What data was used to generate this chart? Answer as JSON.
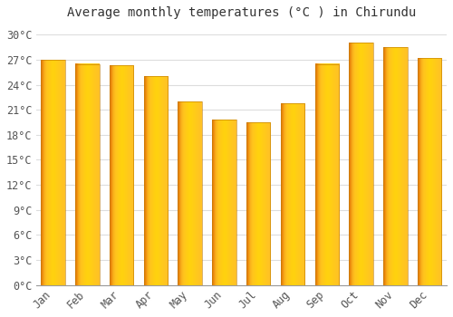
{
  "title": "Average monthly temperatures (°C ) in Chirundu",
  "months": [
    "Jan",
    "Feb",
    "Mar",
    "Apr",
    "May",
    "Jun",
    "Jul",
    "Aug",
    "Sep",
    "Oct",
    "Nov",
    "Dec"
  ],
  "values": [
    27.0,
    26.5,
    26.3,
    25.0,
    22.0,
    19.8,
    19.5,
    21.8,
    26.5,
    29.0,
    28.5,
    27.2
  ],
  "bar_color_left": "#E8820A",
  "bar_color_right": "#FFD700",
  "bar_color_center": "#FFC020",
  "background_color": "#FFFFFF",
  "grid_color": "#DDDDDD",
  "yticks": [
    0,
    3,
    6,
    9,
    12,
    15,
    18,
    21,
    24,
    27,
    30
  ],
  "ytick_labels": [
    "0°C",
    "3°C",
    "6°C",
    "9°C",
    "12°C",
    "15°C",
    "18°C",
    "21°C",
    "24°C",
    "27°C",
    "30°C"
  ],
  "ylim": [
    0,
    31
  ],
  "title_fontsize": 10,
  "tick_fontsize": 8.5
}
